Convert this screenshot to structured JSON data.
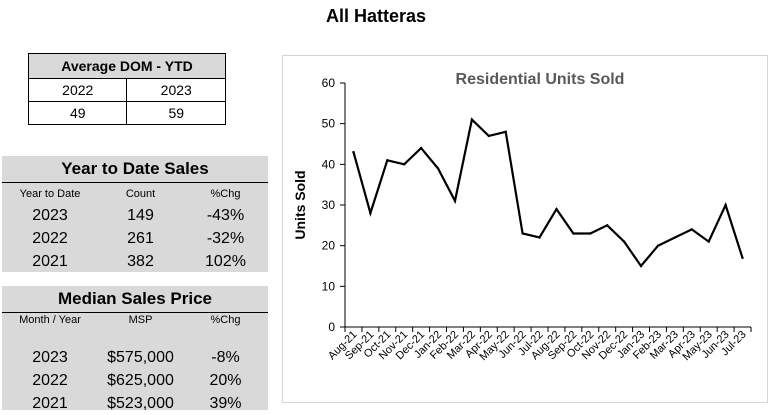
{
  "page_title": "All Hatteras",
  "dom_table": {
    "title": "Average DOM - YTD",
    "columns": [
      "2022",
      "2023"
    ],
    "values": [
      "49",
      "59"
    ]
  },
  "ytd_sales": {
    "title": "Year to Date Sales",
    "headers": [
      "Year to Date",
      "Count",
      "%Chg"
    ],
    "rows": [
      [
        "2023",
        "149",
        "-43%"
      ],
      [
        "2022",
        "261",
        "-32%"
      ],
      [
        "2021",
        "382",
        "102%"
      ]
    ]
  },
  "median_price": {
    "title": "Median Sales Price",
    "headers": [
      "Month / Year",
      "MSP",
      "%Chg"
    ],
    "rows": [
      [
        "2023",
        "$575,000",
        "-8%"
      ],
      [
        "2022",
        "$625,000",
        "20%"
      ],
      [
        "2021",
        "$523,000",
        "39%"
      ]
    ]
  },
  "chart_data": {
    "type": "line",
    "title": "Residential Units Sold",
    "xlabel": "",
    "ylabel": "Units Sold",
    "ylim": [
      0,
      60
    ],
    "yticks": [
      0,
      10,
      20,
      30,
      40,
      50,
      60
    ],
    "grid": false,
    "categories": [
      "Aug-21",
      "Sep-21",
      "Oct-21",
      "Nov-21",
      "Dec-21",
      "Jan-22",
      "Feb-22",
      "Mar-22",
      "Apr-22",
      "May-22",
      "Jun-22",
      "Jul-22",
      "Aug-22",
      "Sep-22",
      "Oct-22",
      "Nov-22",
      "Dec-22",
      "Jan-23",
      "Feb-23",
      "Mar-23",
      "Apr-23",
      "May-23",
      "Jun-23",
      "Jul-23"
    ],
    "series": [
      {
        "values": [
          43,
          28,
          41,
          40,
          44,
          39,
          31,
          51,
          47,
          48,
          23,
          22,
          29,
          23,
          23,
          25,
          21,
          15,
          20,
          22,
          24,
          21,
          30,
          17
        ]
      }
    ],
    "line_color": "#000000",
    "title_color": "#595959"
  }
}
